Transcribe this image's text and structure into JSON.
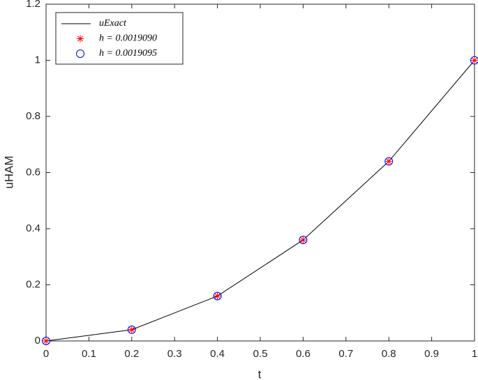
{
  "chart_data": {
    "type": "line",
    "x_label": "t",
    "y_label": "uHAM",
    "x": [
      0,
      0.2,
      0.4,
      0.6,
      0.8,
      1
    ],
    "series": [
      {
        "name": "uExact",
        "color": "#000000",
        "style": "line",
        "values": [
          0,
          0.04,
          0.16,
          0.36,
          0.64,
          1
        ]
      },
      {
        "name": "h = 0.0019090",
        "color": "#ff0000",
        "style": "star",
        "values": [
          0,
          0.04,
          0.16,
          0.36,
          0.64,
          1
        ]
      },
      {
        "name": "h = 0.0019095",
        "color": "#0000ff",
        "style": "circle",
        "values": [
          0,
          0.04,
          0.16,
          0.36,
          0.64,
          1
        ]
      }
    ],
    "xlim": [
      0,
      1
    ],
    "ylim": [
      0,
      1.2
    ],
    "xticks": [
      0,
      0.1,
      0.2,
      0.3,
      0.4,
      0.5,
      0.6,
      0.7,
      0.8,
      0.9,
      1
    ],
    "yticks": [
      0,
      0.2,
      0.4,
      0.6,
      0.8,
      1,
      1.2
    ],
    "grid": false,
    "legend": "top-left"
  }
}
